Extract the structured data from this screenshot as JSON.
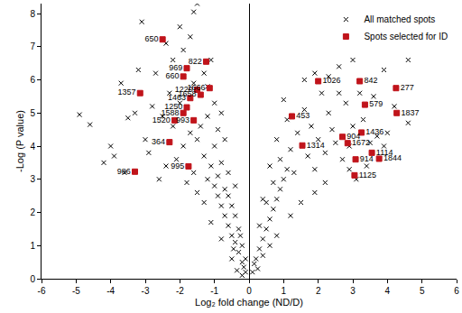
{
  "chart_data": {
    "type": "scatter",
    "x_label": "Log₂ fold change (ND/D)",
    "y_label": "-Log (P value)",
    "xlim": [
      -6,
      6
    ],
    "xticks": [
      -6,
      -5,
      -4,
      -3,
      -2,
      -1,
      0,
      1,
      2,
      3,
      4,
      5,
      6
    ],
    "ylim": [
      0,
      8.3
    ],
    "yticks": [
      0,
      1,
      2,
      3,
      4,
      5,
      6,
      7,
      8
    ],
    "grid": false,
    "legend": "top-right",
    "series": [
      {
        "name": "All matched spots",
        "color": "#000000",
        "marker": "x",
        "x": [
          -0.1,
          -0.2,
          -0.3,
          -0.4,
          -0.5,
          -0.6,
          -0.7,
          -0.8,
          -0.9,
          -1.0,
          -0.3,
          -0.5,
          -0.7,
          -0.2,
          -0.4,
          -0.6,
          -0.9,
          -1.1,
          -1.2,
          -1.3,
          -0.8,
          -1.0,
          -0.6,
          -0.4,
          -1.5,
          -1.4,
          -1.2,
          -0.9,
          -0.7,
          -1.7,
          -1.9,
          -2.1,
          -1.6,
          -1.8,
          -2.4,
          -2.6,
          -2.2,
          -2.5,
          -2.0,
          -1.6,
          -1.3,
          -1.0,
          -2.3,
          -2.8,
          -2.7,
          -2.2,
          -1.9,
          -1.7,
          -2.0,
          -1.6,
          -1.5,
          -3.1,
          -2.4,
          -3.2,
          -3.7,
          -3.3,
          -3.5,
          -4.9,
          -4.6,
          -4.0,
          -3.9,
          -3.0,
          -2.9,
          -3.6,
          -4.2,
          -0.1,
          -0.2,
          -0.15,
          -0.35,
          -0.5,
          -0.8,
          -1.1,
          -1.3,
          -1.5,
          -0.25,
          -0.45,
          -1.2,
          -0.8,
          -1.1,
          0.1,
          0.2,
          0.3,
          0.4,
          0.5,
          0.6,
          0.7,
          0.8,
          0.9,
          1.0,
          1.1,
          0.3,
          0.5,
          0.7,
          0.9,
          1.2,
          1.3,
          1.4,
          1.1,
          1.6,
          1.8,
          2.0,
          1.7,
          1.9,
          2.2,
          2.4,
          2.3,
          2.1,
          1.9,
          2.3,
          2.6,
          2.8,
          2.5,
          2.7,
          3.0,
          3.3,
          3.5,
          3.7,
          3.9,
          3.4,
          3.1,
          2.9,
          2.2,
          1.9,
          1.5,
          1.2,
          0.8,
          0.15,
          0.25,
          0.4,
          0.6,
          3.6,
          3.9,
          4.6,
          4.6,
          4.2,
          3.0,
          2.6,
          1.6,
          2.9,
          3.2,
          4.0,
          1.0,
          0.8,
          0.6,
          0.4
        ],
        "y": [
          0.2,
          0.5,
          0.8,
          1.1,
          1.3,
          1.6,
          1.9,
          2.2,
          2.5,
          2.8,
          1.5,
          2.2,
          2.7,
          1.0,
          1.9,
          2.5,
          3.1,
          3.4,
          3.0,
          3.7,
          3.5,
          4.0,
          3.2,
          2.8,
          4.2,
          4.6,
          4.9,
          4.5,
          4.2,
          4.4,
          4.0,
          3.6,
          3.2,
          2.9,
          3.4,
          3.0,
          4.6,
          4.9,
          5.3,
          5.9,
          6.2,
          5.3,
          5.6,
          5.2,
          6.2,
          6.6,
          6.9,
          7.3,
          7.6,
          8.05,
          8.3,
          7.75,
          7.1,
          6.3,
          5.9,
          5.0,
          4.85,
          4.95,
          4.65,
          4.0,
          3.7,
          4.2,
          3.8,
          3.2,
          3.5,
          0.6,
          0.1,
          0.35,
          0.25,
          0.6,
          1.2,
          1.7,
          2.3,
          2.6,
          1.3,
          0.9,
          5.8,
          5.0,
          6.6,
          0.2,
          0.6,
          0.9,
          1.2,
          1.5,
          1.8,
          2.1,
          2.4,
          2.7,
          3.0,
          3.3,
          1.6,
          2.3,
          2.9,
          3.6,
          3.9,
          3.2,
          4.4,
          4.8,
          5.1,
          4.6,
          4.2,
          3.7,
          3.3,
          3.8,
          4.5,
          5.0,
          5.6,
          6.2,
          6.1,
          5.6,
          5.3,
          4.1,
          3.6,
          4.6,
          4.8,
          4.1,
          4.3,
          4.0,
          3.4,
          3.0,
          3.3,
          2.9,
          2.6,
          2.3,
          1.9,
          1.3,
          0.45,
          0.3,
          0.7,
          1.0,
          5.5,
          6.3,
          6.6,
          4.7,
          5.2,
          6.6,
          6.4,
          6.0,
          4.0,
          5.6,
          4.4,
          5.4,
          4.2,
          3.4,
          2.4
        ]
      },
      {
        "name": "Spots selected for ID",
        "color": "#c0141b",
        "marker": "square",
        "x": [
          -2.5,
          -1.24,
          -1.8,
          -1.9,
          -1.14,
          -1.5,
          -1.7,
          -1.4,
          -3.15,
          -1.8,
          -1.9,
          -1.6,
          -2.15,
          -2.3,
          -1.75,
          -3.3,
          2.0,
          3.2,
          4.25,
          4.27,
          3.35,
          1.24,
          3.25,
          2.7,
          1.54,
          2.85,
          3.55,
          3.08,
          3.76,
          3.05
        ],
        "y": [
          7.22,
          6.55,
          6.35,
          6.1,
          5.75,
          5.7,
          5.45,
          5.55,
          5.6,
          5.17,
          5.0,
          4.78,
          4.78,
          4.12,
          3.39,
          3.23,
          5.96,
          5.96,
          5.75,
          5.0,
          5.25,
          4.9,
          4.41,
          4.28,
          4.02,
          4.09,
          3.8,
          3.6,
          3.62,
          3.12
        ],
        "labels": [
          "650",
          "822",
          "969",
          "660",
          "1666",
          "1220",
          "1463",
          "1658",
          "1357",
          "1250",
          "1588",
          "993",
          "1520",
          "364",
          "995",
          "986",
          "1026",
          "842",
          "277",
          "1837",
          "579",
          "453",
          "1436",
          "904",
          "1314",
          "1672",
          "1114",
          "914",
          "1844",
          "1125"
        ]
      }
    ]
  }
}
